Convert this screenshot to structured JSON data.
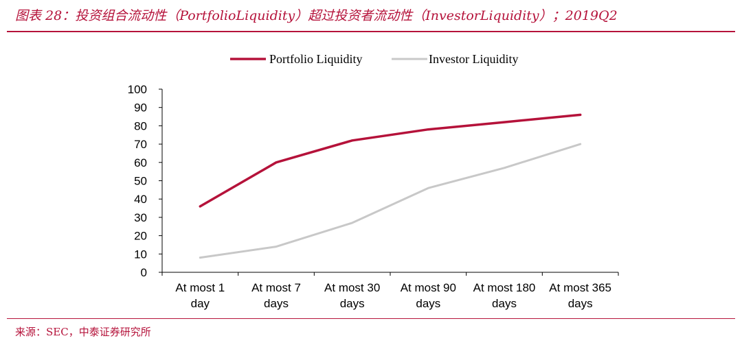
{
  "title": "图表 28：投资组合流动性（PortfolioLiquidity）超过投资者流动性（InvestorLiquidity）；2019Q2",
  "source": "来源：SEC，中泰证券研究所",
  "colors": {
    "accent": "#b5123a",
    "portfolio": "#b5123a",
    "investor": "#c8c8c8"
  },
  "chart_data": {
    "type": "line",
    "categories": [
      [
        "At most 1",
        "day"
      ],
      [
        "At most 7",
        "days"
      ],
      [
        "At most 30",
        "days"
      ],
      [
        "At most 90",
        "days"
      ],
      [
        "At most 180",
        "days"
      ],
      [
        "At most 365",
        "days"
      ]
    ],
    "series": [
      {
        "name": "Portfolio Liquidity",
        "color": "#b5123a",
        "values": [
          36,
          60,
          72,
          78,
          82,
          86
        ]
      },
      {
        "name": "Investor Liquidity",
        "color": "#c8c8c8",
        "values": [
          8,
          14,
          27,
          46,
          57,
          70
        ]
      }
    ],
    "ylim": [
      0,
      100
    ],
    "yticks": [
      0,
      10,
      20,
      30,
      40,
      50,
      60,
      70,
      80,
      90,
      100
    ],
    "legend_position": "top-center",
    "grid": false
  }
}
